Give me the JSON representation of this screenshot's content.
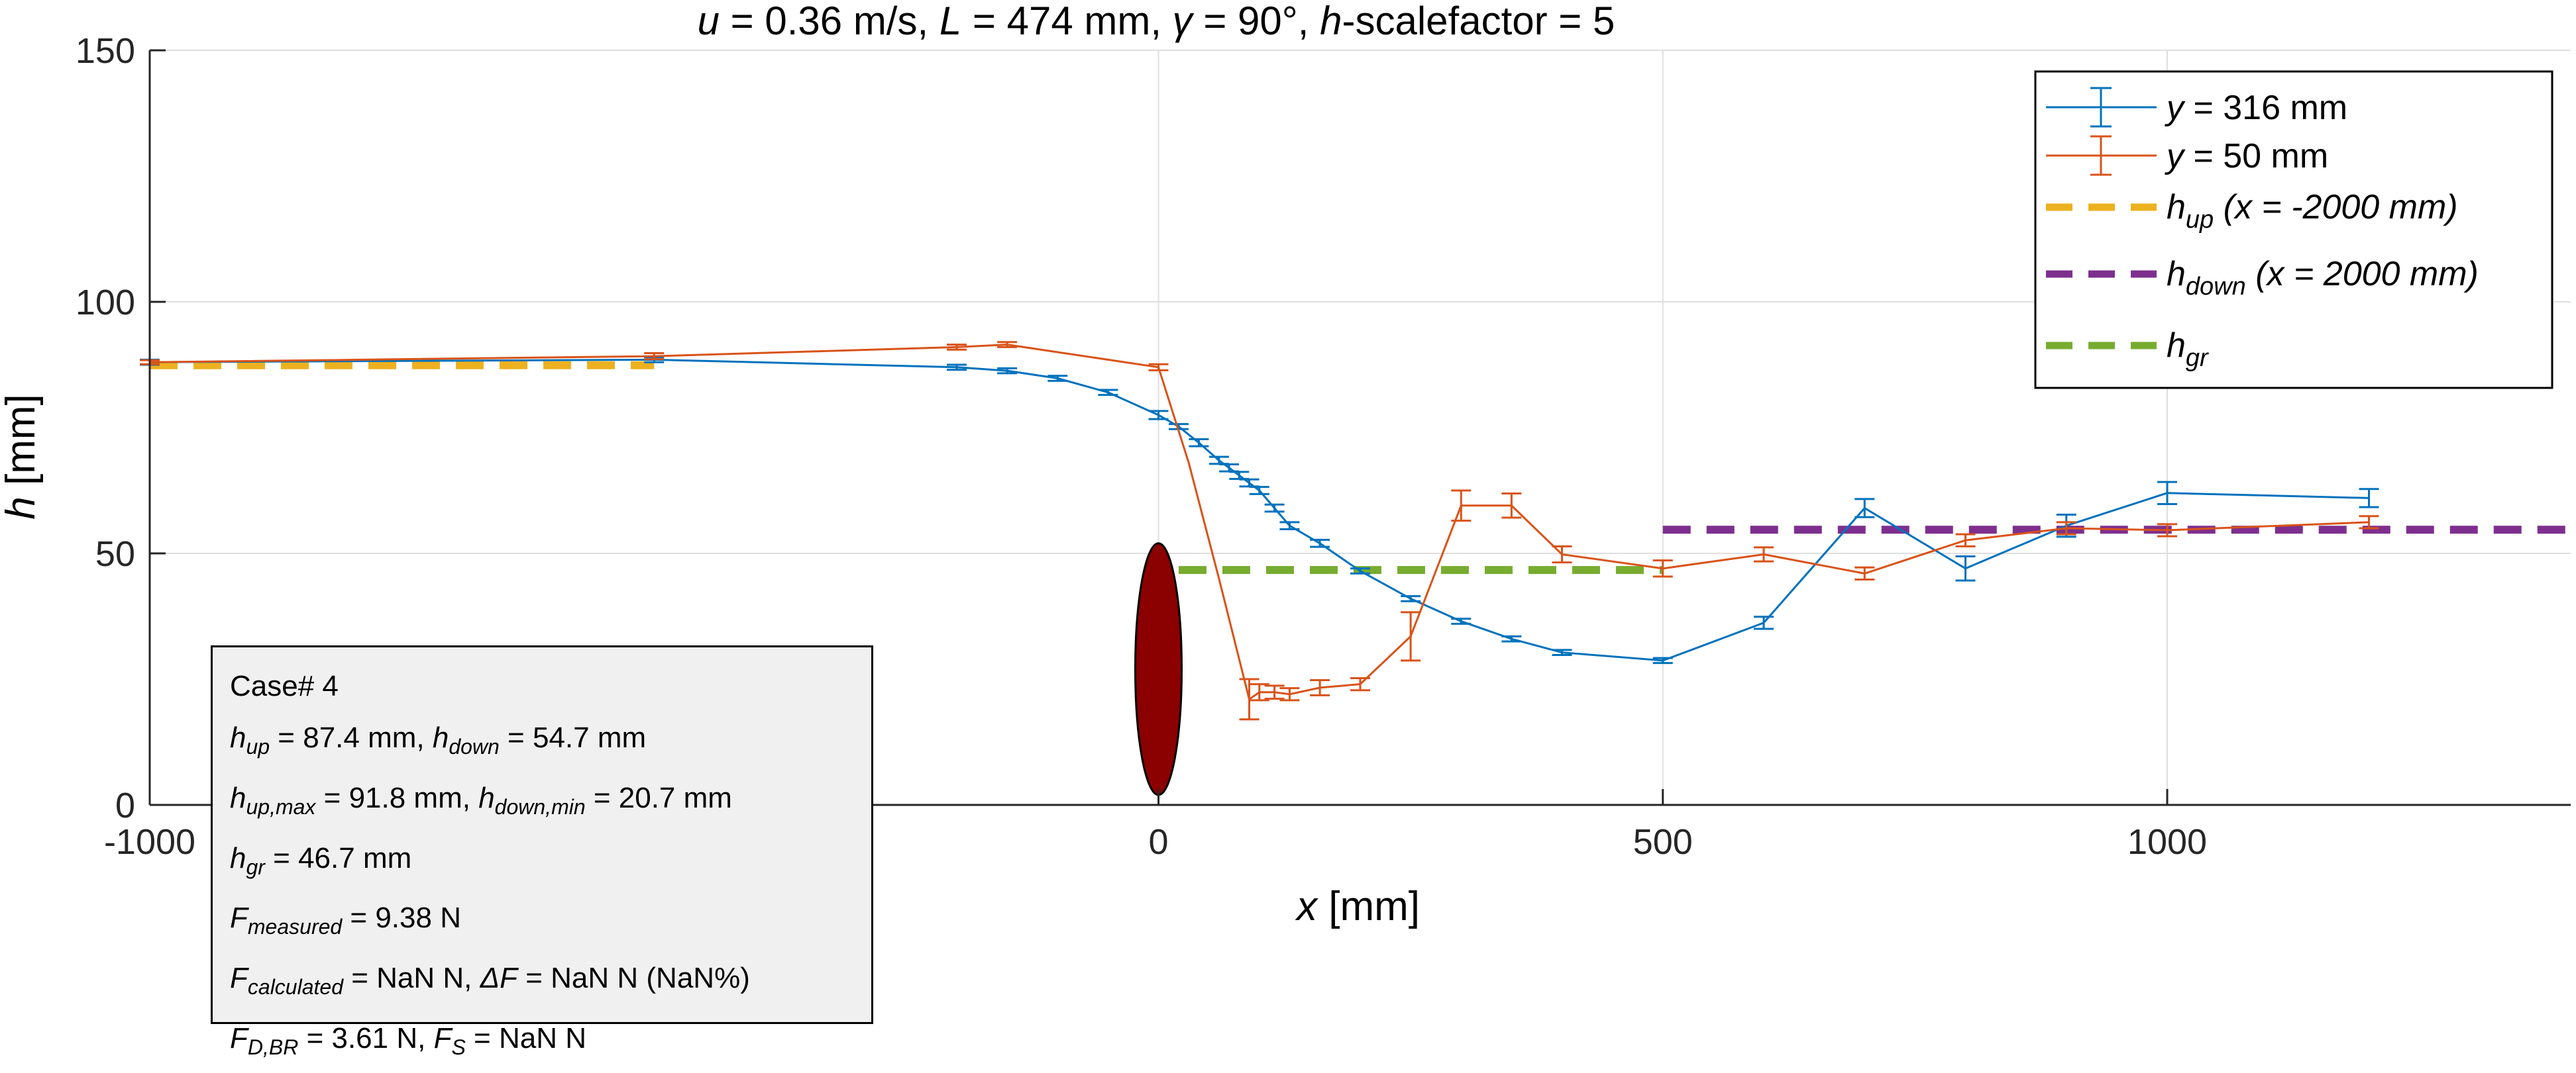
{
  "chart_data": {
    "type": "line",
    "title_parts": [
      "u",
      " = 0.36 m/s, ",
      "L",
      " = 474 mm, ",
      "γ",
      " = 90°, ",
      "h",
      "-scalefactor = 5"
    ],
    "xlabel": {
      "var": "x",
      "unit": " [mm]"
    },
    "ylabel": {
      "var": "h",
      "unit": " [mm]"
    },
    "xlim": [
      -1000,
      1400
    ],
    "ylim": [
      0,
      150
    ],
    "xticks": [
      -1000,
      0,
      500,
      1000
    ],
    "yticks": [
      0,
      50,
      100,
      150
    ],
    "grid": true,
    "legend_position": "top-right",
    "series": [
      {
        "name_var": "y",
        "name_rest": " = 316 mm",
        "color": "#0072BD",
        "x": [
          -1000,
          -500,
          -200,
          -150,
          -100,
          -50,
          0,
          20,
          40,
          60,
          70,
          80,
          90,
          100,
          115,
          130,
          160,
          200,
          250,
          300,
          350,
          400,
          500,
          600,
          700,
          800,
          900,
          1000,
          1200
        ],
        "y": [
          88,
          88.5,
          87,
          86.3,
          84.8,
          82,
          77.5,
          75.2,
          72,
          68.5,
          67,
          65.5,
          64,
          62.5,
          59,
          55.5,
          52,
          46.5,
          41,
          36.5,
          33,
          30.3,
          28.7,
          36.2,
          59,
          47,
          55.5,
          62,
          61
        ],
        "err": [
          0.5,
          0.5,
          0.5,
          0.5,
          0.5,
          0.5,
          0.8,
          0.5,
          0.7,
          0.7,
          0.7,
          0.7,
          0.7,
          0.7,
          0.7,
          0.7,
          0.7,
          0.5,
          0.5,
          0.5,
          0.5,
          0.5,
          0.5,
          1.2,
          1.8,
          2.4,
          2.2,
          2.2,
          1.8
        ]
      },
      {
        "name_var": "y",
        "name_rest": " = 50 mm",
        "color": "#D95319",
        "x": [
          -1000,
          -500,
          -200,
          -150,
          0,
          30,
          60,
          90,
          100,
          115,
          130,
          160,
          200,
          250,
          300,
          350,
          400,
          500,
          600,
          700,
          800,
          900,
          1000,
          1200
        ],
        "y": [
          88,
          89.2,
          91,
          91.5,
          87,
          68,
          45,
          21,
          22.4,
          22.4,
          22,
          23.3,
          24,
          33.5,
          59.5,
          59.5,
          49.8,
          47,
          49.8,
          46,
          52.6,
          55,
          54.6,
          56.2
        ],
        "err": [
          0.4,
          0.6,
          0.5,
          0.5,
          0.6,
          0,
          0,
          4,
          1.6,
          1.3,
          1.2,
          1.5,
          1.2,
          4.8,
          3,
          2.4,
          1.6,
          1.6,
          1.4,
          1.2,
          1.2,
          1.2,
          1.2,
          1.2
        ]
      }
    ],
    "reference_lines": [
      {
        "name_var": "h",
        "name_sub": "up",
        "name_rest": " (x = -2000 mm)",
        "color": "#EDB120",
        "x": [
          -1000,
          -500
        ],
        "y": 87.4
      },
      {
        "name_var": "h",
        "name_sub": "down",
        "name_rest": " (x = 2000 mm)",
        "color": "#7E2F8E",
        "x": [
          500,
          1400
        ],
        "y": 54.7
      },
      {
        "name_var": "h",
        "name_sub": "gr",
        "name_rest": "",
        "color": "#77AC30",
        "x": [
          20,
          500
        ],
        "y": 46.7
      }
    ],
    "obstacle": {
      "cx": 0,
      "cy": 27,
      "rx": 23,
      "ry": 25,
      "color": "#8B0000"
    },
    "info_box": {
      "case_label": "Case# 4",
      "h_up": " = 87.4 mm, ",
      "h_down": " = 54.7 mm",
      "h_up_max": " = 91.8 mm, ",
      "h_down_min": " = 20.7 mm",
      "h_gr": " = 46.7 mm",
      "f_measured": " = 9.38 N",
      "f_calculated": " = NaN N, ",
      "delta_f": " = NaN N (NaN%)",
      "f_d_br": " = 3.61 N, ",
      "f_s": " = NaN N"
    }
  }
}
